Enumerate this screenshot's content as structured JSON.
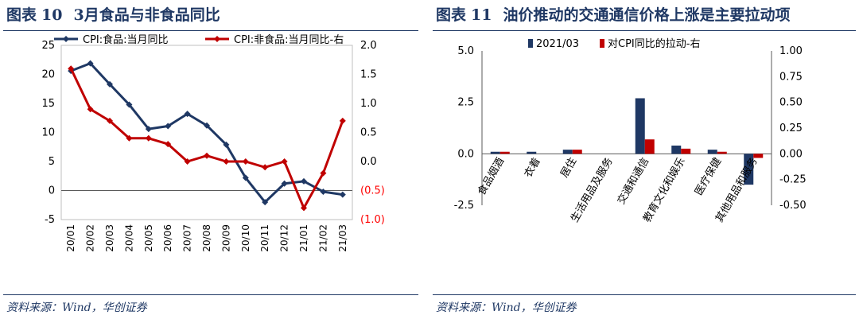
{
  "left": {
    "figure_label": "图表",
    "figure_number": "10",
    "title": "3月食品与非食品同比",
    "source": "资料来源：Wind，华创证券"
  },
  "right": {
    "figure_label": "图表",
    "figure_number": "11",
    "title": "油价推动的交通通信价格上涨是主要拉动项",
    "source": "资料来源：Wind，华创证券"
  },
  "colors": {
    "navy": "#1f3864",
    "red": "#c00000"
  },
  "chart_data": [
    {
      "type": "line",
      "categories": [
        "20/01",
        "20/02",
        "20/03",
        "20/04",
        "20/05",
        "20/06",
        "20/07",
        "20/08",
        "20/09",
        "20/10",
        "20/11",
        "20/12",
        "21/01",
        "21/02",
        "21/03"
      ],
      "series": [
        {
          "name": "CPI:食品:当月同比",
          "axis": "left",
          "color": "#1f3864",
          "values": [
            20.6,
            21.9,
            18.3,
            14.8,
            10.6,
            11.1,
            13.2,
            11.2,
            7.9,
            2.2,
            -2.0,
            1.2,
            1.6,
            -0.2,
            -0.7
          ]
        },
        {
          "name": "CPI:非食品:当月同比-右",
          "axis": "right",
          "color": "#c00000",
          "values": [
            1.6,
            0.9,
            0.7,
            0.4,
            0.4,
            0.3,
            0.0,
            0.1,
            0.0,
            0.0,
            -0.1,
            0.0,
            -0.8,
            -0.2,
            0.7
          ]
        }
      ],
      "y_left": {
        "lim": [
          -5,
          25
        ],
        "ticks": [
          "-5",
          "0",
          "5",
          "10",
          "15",
          "20",
          "25"
        ]
      },
      "y_right": {
        "lim": [
          -1.0,
          2.0
        ],
        "ticks": [
          "(1.0)",
          "(0.5)",
          "0.0",
          "0.5",
          "1.0",
          "1.5",
          "2.0"
        ]
      },
      "grid": false,
      "legend": "top"
    },
    {
      "type": "bar",
      "categories": [
        "食品烟酒",
        "衣着",
        "居住",
        "生活用品及服务",
        "交通和通信",
        "教育文化和娱乐",
        "医疗保健",
        "其他用品和服务"
      ],
      "series": [
        {
          "name": "2021/03",
          "axis": "left",
          "color": "#1f3864",
          "values": [
            0.1,
            0.1,
            0.2,
            0.0,
            2.7,
            0.4,
            0.2,
            -1.5
          ]
        },
        {
          "name": "对CPI同比的拉动-右",
          "axis": "right",
          "color": "#c00000",
          "values": [
            0.02,
            0.0,
            0.04,
            0.0,
            0.14,
            0.05,
            0.02,
            -0.04
          ]
        }
      ],
      "y_left": {
        "lim": [
          -2.5,
          5.0
        ],
        "ticks": [
          "-2.5",
          "0.0",
          "2.5",
          "5.0"
        ]
      },
      "y_right": {
        "lim": [
          -0.5,
          1.0
        ],
        "ticks": [
          "-0.50",
          "-0.25",
          "0.00",
          "0.25",
          "0.50",
          "0.75",
          "1.00"
        ]
      },
      "grid": false,
      "legend": "top"
    }
  ]
}
